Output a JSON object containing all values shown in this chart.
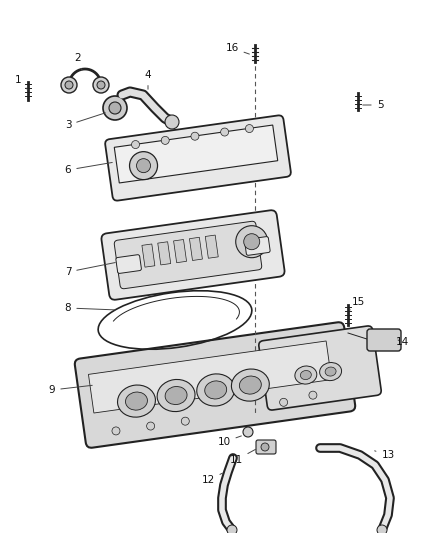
{
  "bg_color": "#ffffff",
  "fig_width": 4.38,
  "fig_height": 5.33,
  "line_color": "#222222",
  "fill_light": "#e8e8e8",
  "fill_mid": "#d0d0d0",
  "fill_dark": "#b0b0b0"
}
